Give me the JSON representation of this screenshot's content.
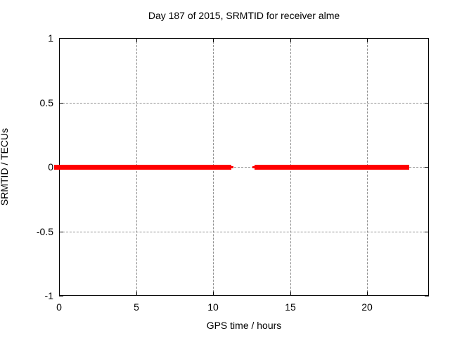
{
  "chart_data": {
    "type": "line",
    "title": "Day 187 of 2015, SRMTID for receiver alme",
    "xlabel": "GPS time / hours",
    "ylabel": "SRMTID / TECUs",
    "xlim": [
      0,
      24
    ],
    "ylim": [
      -1,
      1
    ],
    "x_ticks": [
      {
        "value": 0,
        "label": "0"
      },
      {
        "value": 5,
        "label": "5"
      },
      {
        "value": 10,
        "label": "10"
      },
      {
        "value": 15,
        "label": "15"
      },
      {
        "value": 20,
        "label": "20"
      }
    ],
    "y_ticks": [
      {
        "value": 1,
        "label": "1"
      },
      {
        "value": 0.5,
        "label": "0.5"
      },
      {
        "value": 0,
        "label": "0"
      },
      {
        "value": -0.5,
        "label": "-0.5"
      },
      {
        "value": -1,
        "label": "-1"
      }
    ],
    "grid": {
      "x_values": [
        5,
        10,
        15,
        20
      ],
      "y_values": [
        0.5,
        0,
        -0.5
      ],
      "style": "dotted",
      "color": "#8f8f8f"
    },
    "legend": "none",
    "series": [
      {
        "name": "SRMTID",
        "color": "#ff0000",
        "segments": [
          {
            "x_start": -0.3,
            "x_end": 11.18,
            "y": 0,
            "thickness": 7
          },
          {
            "x_start": 11.18,
            "x_end": 11.32,
            "y": 0,
            "thickness": 3
          },
          {
            "x_start": 12.55,
            "x_end": 12.68,
            "y": 0,
            "thickness": 3
          },
          {
            "x_start": 12.68,
            "x_end": 22.72,
            "y": 0,
            "thickness": 7
          }
        ]
      }
    ],
    "colors": {
      "border": "#000000",
      "text": "#000000",
      "background": "#ffffff"
    }
  }
}
